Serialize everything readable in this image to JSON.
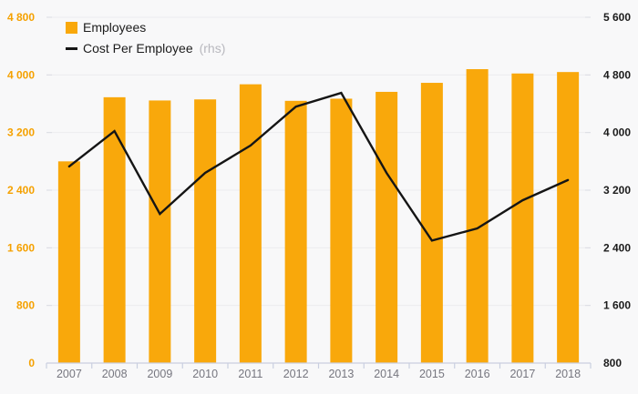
{
  "chart_data": {
    "type": "bar",
    "subtype": "bar-and-line-combo",
    "title": "",
    "categories": [
      "2007",
      "2008",
      "2009",
      "2010",
      "2011",
      "2012",
      "2013",
      "2014",
      "2015",
      "2016",
      "2017",
      "2018"
    ],
    "series": [
      {
        "name": "Employees",
        "kind": "bar",
        "axis": "left",
        "color": "#F9A80B",
        "values": [
          2800,
          3690,
          3645,
          3660,
          3870,
          3640,
          3670,
          3765,
          3890,
          4080,
          4020,
          4040
        ]
      },
      {
        "name": "Cost Per Employee",
        "suffix": "(rhs)",
        "kind": "line",
        "axis": "right",
        "color": "#151515",
        "values": [
          3530,
          4020,
          2870,
          3440,
          3820,
          4360,
          4550,
          3440,
          2500,
          2670,
          3060,
          3340
        ]
      }
    ],
    "left_axis": {
      "range": [
        0,
        4800
      ],
      "step": 800,
      "tick_values": [
        0,
        800,
        1600,
        2400,
        3200,
        4000,
        4800
      ],
      "tick_labels": [
        "0",
        "800",
        "1 600",
        "2 400",
        "3 200",
        "4 000",
        "4 800"
      ],
      "label_color": "#F5A100"
    },
    "right_axis": {
      "range": [
        800,
        5600
      ],
      "step": 800,
      "tick_values": [
        800,
        1600,
        2400,
        3200,
        4000,
        4800,
        5600
      ],
      "tick_labels": [
        "800",
        "1 600",
        "2 400",
        "3 200",
        "4 000",
        "4 800",
        "5 600"
      ],
      "label_color": "#1c1c1c"
    },
    "x_axis": {
      "label_color": "#76767f"
    },
    "legend_position": "top-left",
    "grid": true,
    "colors": {
      "background": "#f8f8f9",
      "gridline": "#ececef",
      "axis_line": "#c9cfe0",
      "edge_tick": "#dadce4",
      "rhs_suffix": "#b8b8be"
    }
  }
}
